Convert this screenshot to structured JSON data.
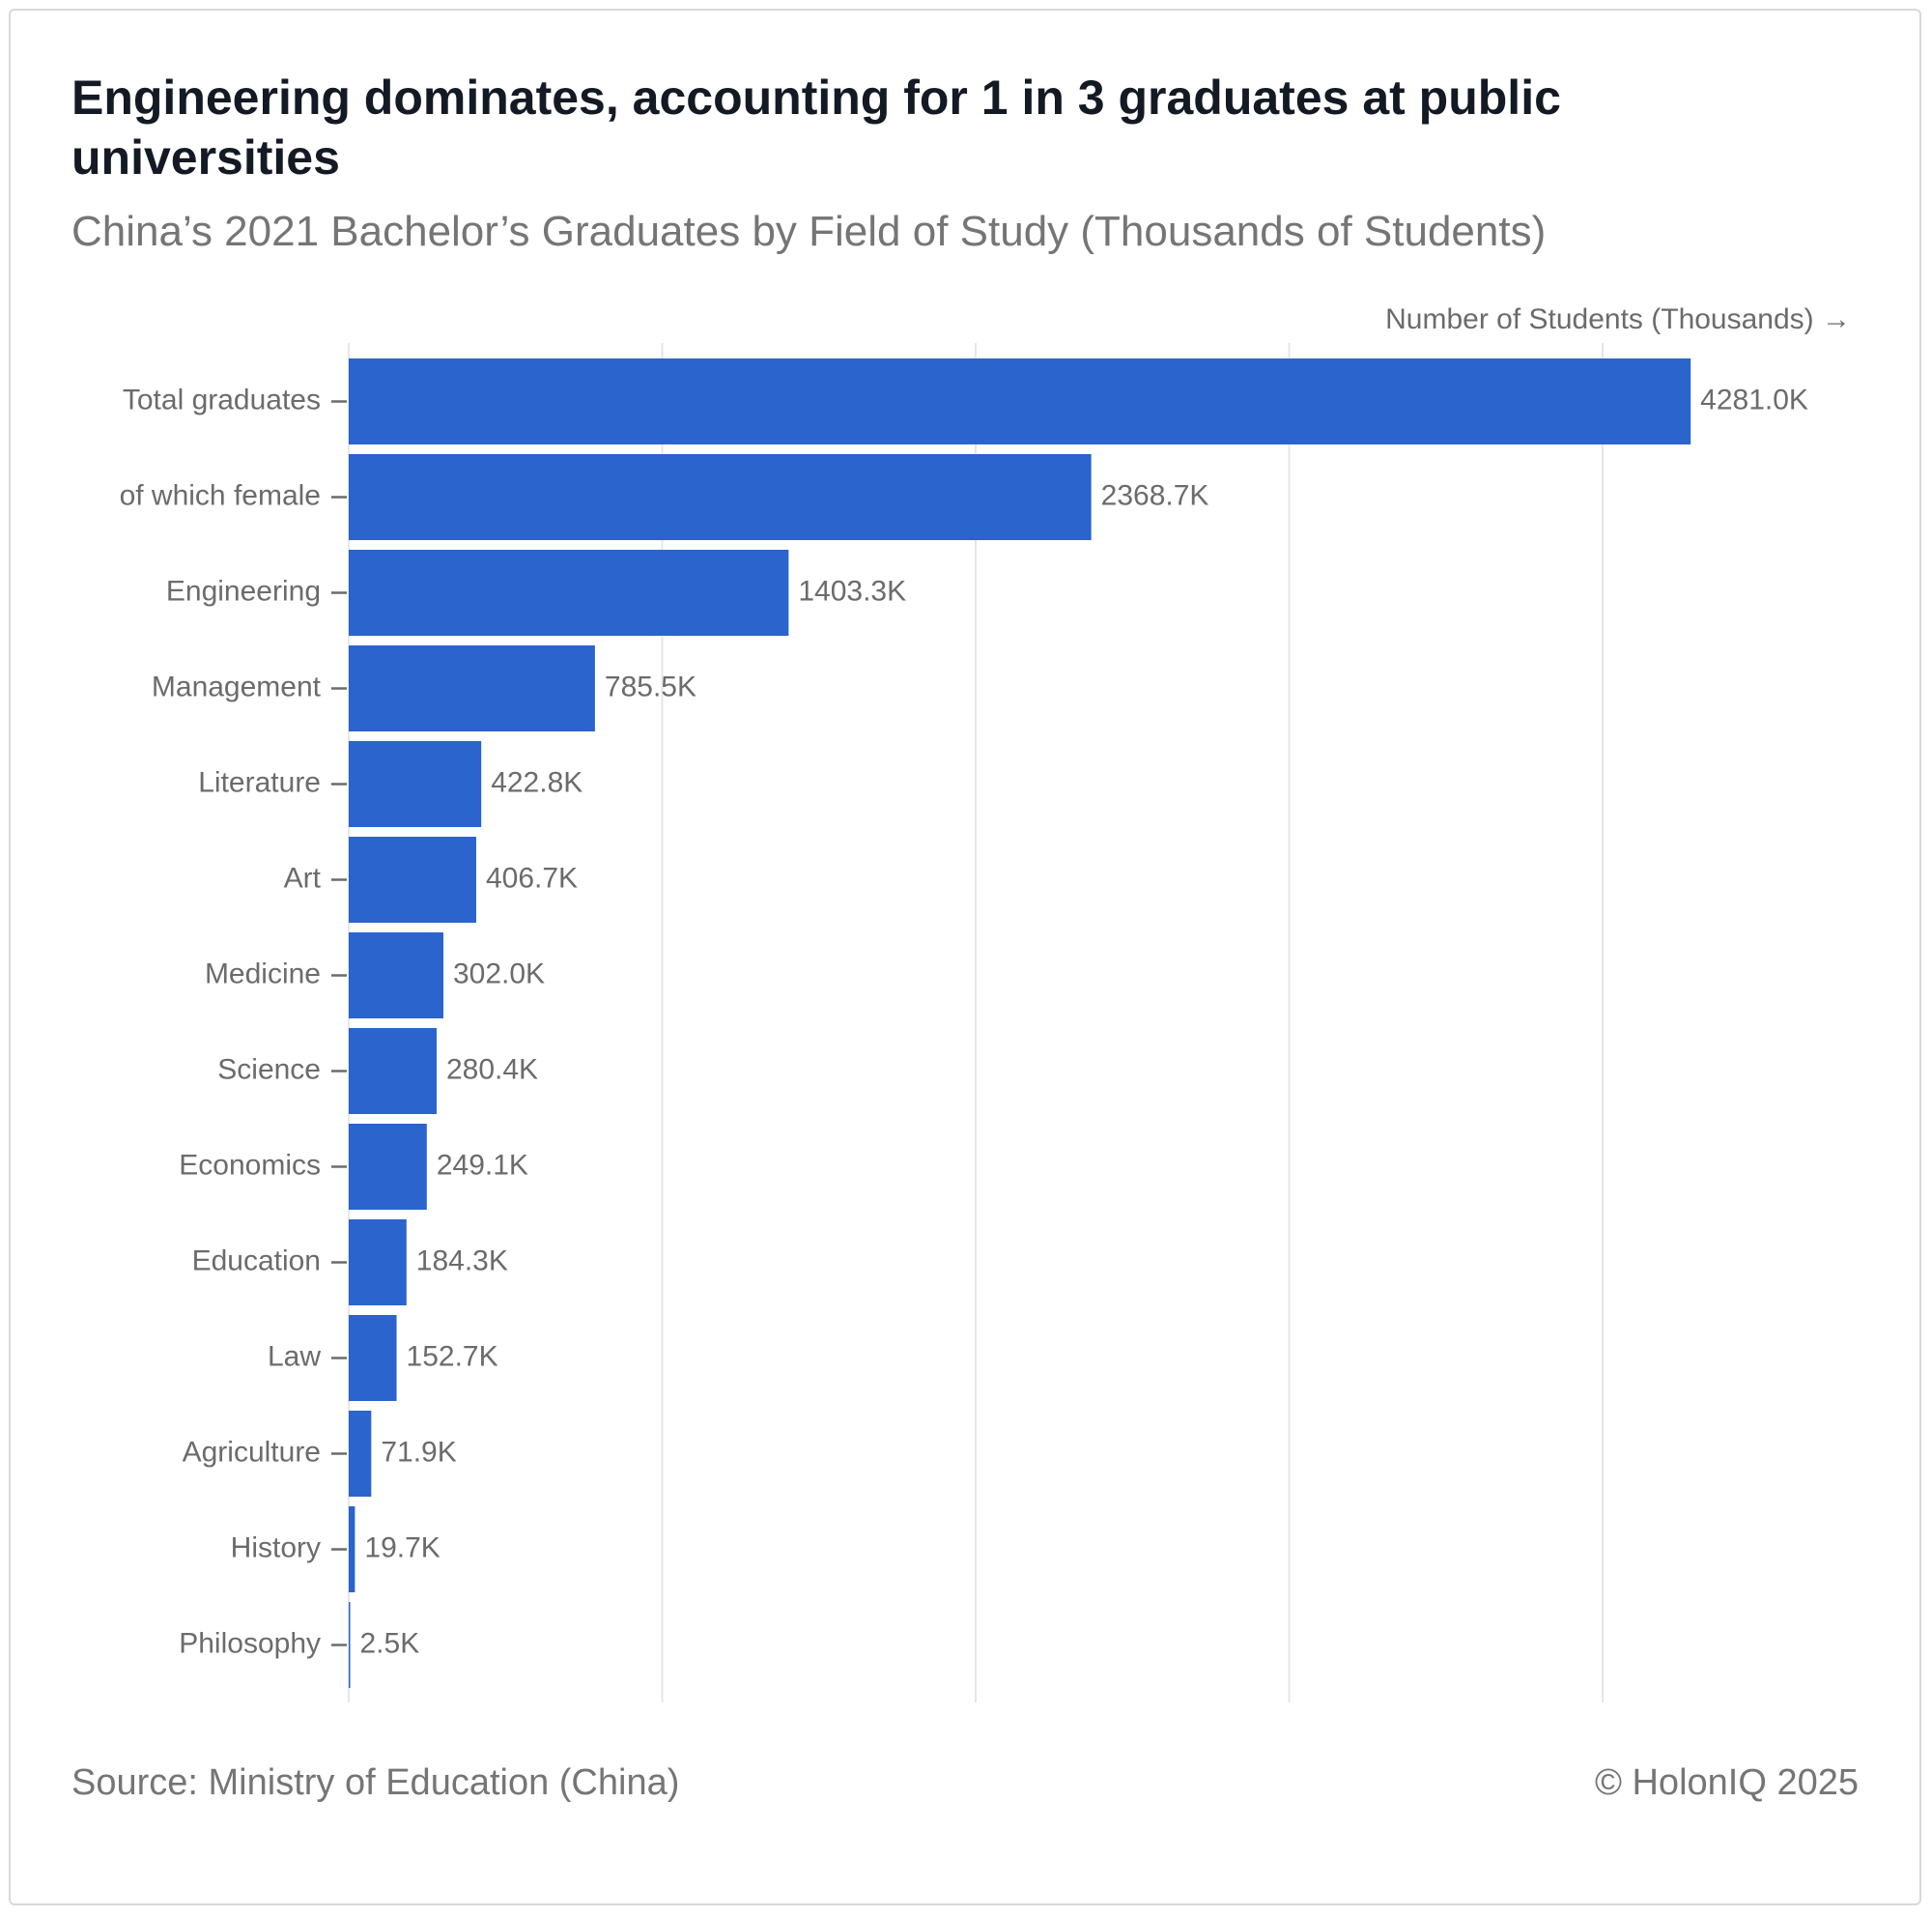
{
  "colors": {
    "bar": "#2a64cc",
    "grid": "#e6e6e6",
    "label": "#6b6b6b",
    "title": "#141a24",
    "subtitle": "#757575"
  },
  "header": {
    "title": "Engineering dominates, accounting for 1 in 3 graduates at public universities",
    "subtitle": "China’s 2021 Bachelor’s Graduates by Field of Study (Thousands of Students)"
  },
  "footer": {
    "source": "Source: Ministry of Education (China)",
    "copyright": "© HolonIQ 2025"
  },
  "chart_data": {
    "type": "bar",
    "orientation": "horizontal",
    "title": "Engineering dominates, accounting for 1 in 3 graduates at public universities",
    "subtitle": "China’s 2021 Bachelor’s Graduates by Field of Study (Thousands of Students)",
    "xlabel": "Number of Students (Thousands) →",
    "ylabel": "",
    "xlim": [
      0,
      5000
    ],
    "grid": true,
    "grid_ticks": [
      0,
      1000,
      2000,
      3000,
      4000
    ],
    "value_suffix": "K",
    "categories": [
      "Total graduates",
      "of which female",
      "Engineering",
      "Management",
      "Literature",
      "Art",
      "Medicine",
      "Science",
      "Economics",
      "Education",
      "Law",
      "Agriculture",
      "History",
      "Philosophy"
    ],
    "values": [
      4281.0,
      2368.7,
      1403.3,
      785.5,
      422.8,
      406.7,
      302.0,
      280.4,
      249.1,
      184.3,
      152.7,
      71.9,
      19.7,
      2.5
    ],
    "data_labels": [
      "4281.0K",
      "2368.7K",
      "1403.3K",
      "785.5K",
      "422.8K",
      "406.7K",
      "302.0K",
      "280.4K",
      "249.1K",
      "184.3K",
      "152.7K",
      "71.9K",
      "19.7K",
      "2.5K"
    ]
  }
}
